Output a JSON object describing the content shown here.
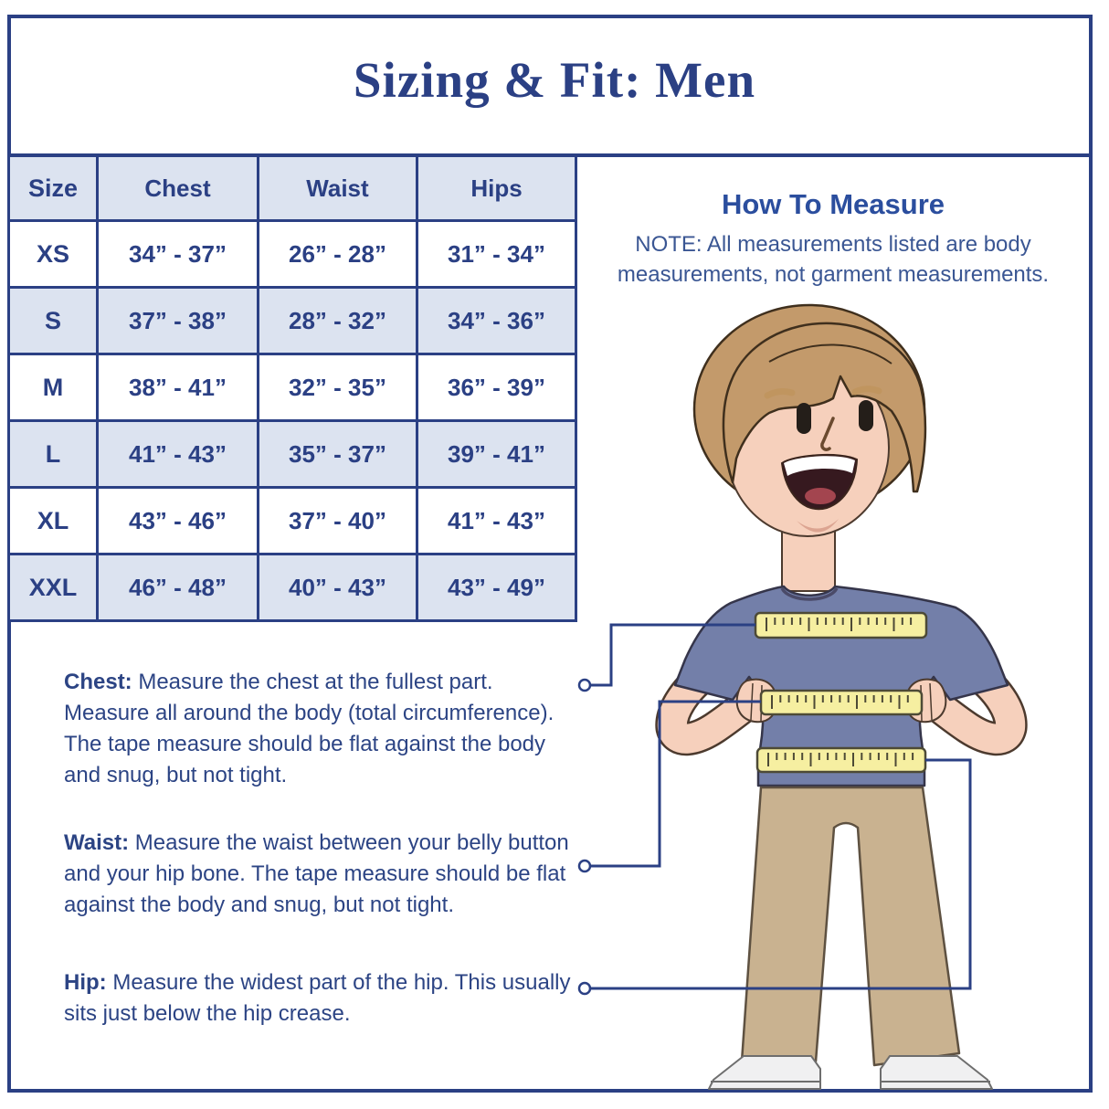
{
  "title": "Sizing & Fit: Men",
  "sizing_table": {
    "headers": {
      "size": "Size",
      "chest": "Chest",
      "waist": "Waist",
      "hips": "Hips"
    },
    "rows": [
      {
        "size": "XS",
        "chest": "34” - 37”",
        "waist": "26” - 28”",
        "hips": "31” - 34”"
      },
      {
        "size": "S",
        "chest": "37” - 38”",
        "waist": "28” - 32”",
        "hips": "34” - 36”"
      },
      {
        "size": "M",
        "chest": "38” - 41”",
        "waist": "32” - 35”",
        "hips": "36” - 39”"
      },
      {
        "size": "L",
        "chest": "41” - 43”",
        "waist": "35” - 37”",
        "hips": "39” - 41”"
      },
      {
        "size": "XL",
        "chest": "43” - 46”",
        "waist": "37” - 40”",
        "hips": "41” - 43”"
      },
      {
        "size": "XXL",
        "chest": "46” - 48”",
        "waist": "40” - 43”",
        "hips": "43” - 49”"
      }
    ]
  },
  "how_to_measure": {
    "heading": "How To Measure",
    "note_lines": [
      "NOTE: All measurements listed are body",
      "measurements, not garment measurements."
    ]
  },
  "instructions": [
    {
      "label": "Chest:",
      "lines": [
        "Measure the chest at the fullest part.",
        "Measure all around the body (total circumference).",
        "The tape measure should be flat against the body",
        "and snug, but not tight."
      ]
    },
    {
      "label": "Waist:",
      "lines": [
        "Measure the waist between your belly button",
        "and your hip bone. The tape measure should be flat",
        "against the body and snug, but not tight."
      ]
    },
    {
      "label": "Hip:",
      "lines": [
        "Measure the widest part of the hip. This usually",
        "sits just below the hip crease."
      ]
    }
  ],
  "illustration": {
    "description": "Cartoon man standing with hands on hips wearing yellow measuring tapes around his chest, waist, and hips"
  },
  "colors": {
    "navy": "#2B4084",
    "accent_blue": "#2B4E9E",
    "table_alt_row": "#DCE3F0",
    "tape_yellow": "#F6EFA1",
    "shirt_blue": "#737FA9",
    "pants_khaki": "#C9B290",
    "skin": "#F6D0BC",
    "hair": "#C39A6B"
  }
}
